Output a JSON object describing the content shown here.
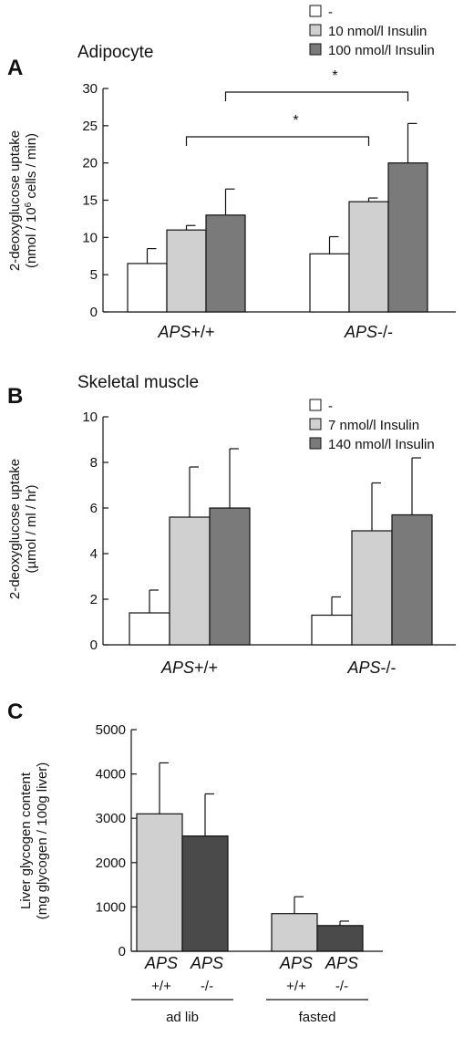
{
  "chart_data": [
    {
      "type": "bar",
      "panel": "A",
      "title": "Adipocyte",
      "ylabel": "2-deoxyglucose uptake",
      "ylabel_units": {
        "before": "(nmol / 10",
        "sup": "6",
        "after": " cells / min)"
      },
      "ylim": [
        0,
        30
      ],
      "yticks": [
        0,
        5,
        10,
        15,
        20,
        25,
        30
      ],
      "categories": [
        {
          "italic": "APS",
          "plain": "+/+"
        },
        {
          "italic": "APS",
          "plain": "-/-"
        }
      ],
      "series": [
        {
          "name": "-",
          "color": "#ffffff",
          "values": [
            6.5,
            7.8
          ],
          "errors": [
            2.0,
            2.3
          ]
        },
        {
          "name": "10 nmol/l Insulin",
          "color": "#d0d0d0",
          "values": [
            11.0,
            14.8
          ],
          "errors": [
            0.6,
            0.5
          ]
        },
        {
          "name": "100 nmol/l Insulin",
          "color": "#7a7a7a",
          "values": [
            13.0,
            20.0
          ],
          "errors": [
            3.5,
            5.3
          ]
        }
      ],
      "significance": [
        {
          "label": "*",
          "from": [
            0,
            1
          ],
          "to": [
            1,
            1
          ]
        },
        {
          "label": "*",
          "from": [
            0,
            2
          ],
          "to": [
            1,
            2
          ]
        }
      ],
      "legend_position": "top-right"
    },
    {
      "type": "bar",
      "panel": "B",
      "title": "Skeletal muscle",
      "ylabel": "2-deoxyglucose uptake",
      "ylabel_units": {
        "before": "(µmol / ml / hr)",
        "sup": "",
        "after": ""
      },
      "ylim": [
        0,
        10
      ],
      "yticks": [
        0,
        2,
        4,
        6,
        8,
        10
      ],
      "categories": [
        {
          "italic": "APS",
          "plain": "+/+"
        },
        {
          "italic": "APS",
          "plain": "-/-"
        }
      ],
      "series": [
        {
          "name": "-",
          "color": "#ffffff",
          "values": [
            1.4,
            1.3
          ],
          "errors": [
            1.0,
            0.8
          ]
        },
        {
          "name": "7 nmol/l Insulin",
          "color": "#d0d0d0",
          "values": [
            5.6,
            5.0
          ],
          "errors": [
            2.2,
            2.1
          ]
        },
        {
          "name": "140 nmol/l Insulin",
          "color": "#7a7a7a",
          "values": [
            6.0,
            5.7
          ],
          "errors": [
            2.6,
            2.5
          ]
        }
      ],
      "legend_position": "top-right"
    },
    {
      "type": "bar",
      "panel": "C",
      "title": "",
      "ylabel": "Liver glycogen content",
      "ylabel_units": {
        "before": "(mg glycogen / 100g liver)",
        "sup": "",
        "after": ""
      },
      "ylim": [
        0,
        5000
      ],
      "yticks": [
        0,
        1000,
        2000,
        3000,
        4000,
        5000
      ],
      "groups": [
        "ad lib",
        "fasted"
      ],
      "categories": [
        {
          "italic": "APS",
          "plain": "+/+"
        },
        {
          "italic": "APS",
          "plain": "-/-"
        }
      ],
      "series": [
        {
          "name": "",
          "color": "#d0d0d0",
          "values": [
            3100,
            850
          ],
          "errors": [
            1150,
            380
          ]
        },
        {
          "name": "",
          "color": "#4a4a4a",
          "values": [
            2600,
            580
          ],
          "errors": [
            950,
            100
          ]
        }
      ]
    }
  ]
}
